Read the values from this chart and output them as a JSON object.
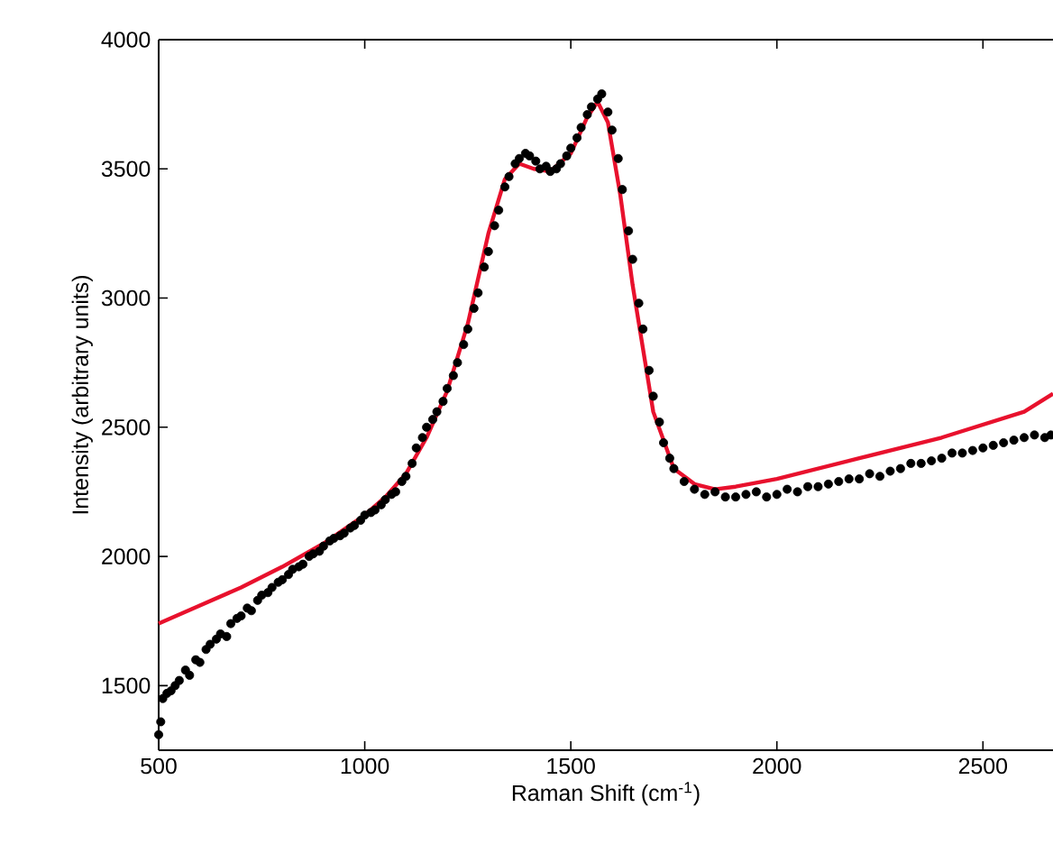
{
  "chart_data": {
    "type": "scatter",
    "xlabel": "Raman Shift (cm$^{-1}$)",
    "ylabel": "Intensity (arbitrary units)",
    "xlim": [
      500,
      2670
    ],
    "ylim": [
      1250,
      4000
    ],
    "xticks": [
      500,
      1000,
      1500,
      2000,
      2500
    ],
    "yticks": [
      1500,
      2000,
      2500,
      3000,
      3500,
      4000
    ],
    "grid": false,
    "series": [
      {
        "type": "scatter",
        "color": "#000000",
        "marker": "circle",
        "x": [
          500,
          505,
          510,
          520,
          530,
          540,
          550,
          565,
          575,
          590,
          600,
          615,
          625,
          640,
          650,
          665,
          675,
          690,
          700,
          715,
          725,
          740,
          750,
          765,
          775,
          790,
          800,
          815,
          825,
          840,
          850,
          865,
          875,
          890,
          900,
          915,
          925,
          940,
          950,
          965,
          975,
          990,
          1000,
          1015,
          1025,
          1040,
          1050,
          1065,
          1075,
          1090,
          1100,
          1115,
          1125,
          1140,
          1150,
          1165,
          1175,
          1190,
          1200,
          1215,
          1225,
          1240,
          1250,
          1265,
          1275,
          1290,
          1300,
          1315,
          1325,
          1340,
          1350,
          1365,
          1375,
          1390,
          1400,
          1415,
          1425,
          1440,
          1450,
          1465,
          1475,
          1490,
          1500,
          1515,
          1525,
          1540,
          1550,
          1565,
          1575,
          1590,
          1600,
          1615,
          1625,
          1640,
          1650,
          1665,
          1675,
          1690,
          1700,
          1715,
          1725,
          1740,
          1750,
          1775,
          1800,
          1825,
          1850,
          1875,
          1900,
          1925,
          1950,
          1975,
          2000,
          2025,
          2050,
          2075,
          2100,
          2125,
          2150,
          2175,
          2200,
          2225,
          2250,
          2275,
          2300,
          2325,
          2350,
          2375,
          2400,
          2425,
          2450,
          2475,
          2500,
          2525,
          2550,
          2575,
          2600,
          2625,
          2650,
          2665
        ],
        "values": [
          1310,
          1360,
          1450,
          1470,
          1480,
          1500,
          1520,
          1560,
          1540,
          1600,
          1590,
          1640,
          1660,
          1680,
          1700,
          1690,
          1740,
          1760,
          1770,
          1800,
          1790,
          1830,
          1850,
          1860,
          1880,
          1900,
          1910,
          1930,
          1950,
          1960,
          1970,
          2000,
          2010,
          2020,
          2040,
          2060,
          2070,
          2080,
          2090,
          2110,
          2120,
          2140,
          2160,
          2170,
          2180,
          2200,
          2220,
          2240,
          2250,
          2290,
          2310,
          2360,
          2420,
          2460,
          2500,
          2530,
          2560,
          2600,
          2650,
          2700,
          2750,
          2820,
          2880,
          2960,
          3020,
          3120,
          3180,
          3280,
          3340,
          3430,
          3470,
          3520,
          3540,
          3560,
          3550,
          3530,
          3500,
          3510,
          3490,
          3500,
          3520,
          3550,
          3580,
          3620,
          3660,
          3710,
          3740,
          3770,
          3790,
          3720,
          3650,
          3540,
          3420,
          3260,
          3150,
          2980,
          2880,
          2720,
          2620,
          2520,
          2440,
          2380,
          2340,
          2290,
          2260,
          2240,
          2250,
          2230,
          2230,
          2240,
          2250,
          2230,
          2240,
          2260,
          2250,
          2270,
          2270,
          2280,
          2290,
          2300,
          2300,
          2320,
          2310,
          2330,
          2340,
          2360,
          2360,
          2370,
          2380,
          2400,
          2400,
          2410,
          2420,
          2430,
          2440,
          2450,
          2460,
          2470,
          2460,
          2470
        ],
        "line_style": "none"
      },
      {
        "type": "line",
        "color": "#e8112d",
        "marker": "none",
        "line_style": "solid",
        "x": [
          500,
          600,
          700,
          800,
          900,
          1000,
          1050,
          1100,
          1150,
          1200,
          1250,
          1300,
          1340,
          1375,
          1410,
          1450,
          1500,
          1540,
          1565,
          1590,
          1620,
          1650,
          1700,
          1750,
          1800,
          1850,
          1900,
          2000,
          2200,
          2400,
          2600,
          2670
        ],
        "values": [
          1740,
          1810,
          1880,
          1960,
          2050,
          2160,
          2230,
          2320,
          2460,
          2640,
          2900,
          3250,
          3460,
          3520,
          3500,
          3490,
          3560,
          3700,
          3760,
          3680,
          3400,
          3050,
          2560,
          2340,
          2280,
          2260,
          2270,
          2300,
          2380,
          2460,
          2560,
          2630
        ]
      }
    ]
  }
}
